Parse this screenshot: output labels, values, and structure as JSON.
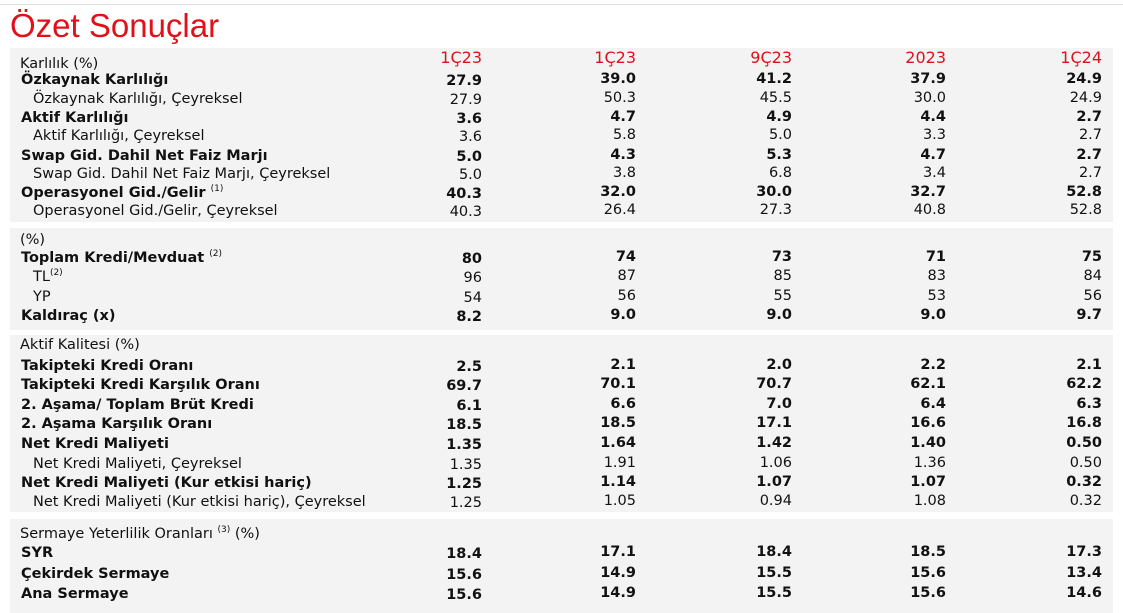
{
  "header": {
    "title": "Özet Sonuçlar",
    "columns": [
      "1Ç23",
      "1Ç23",
      "9Ç23",
      "2023",
      "1Ç24"
    ]
  },
  "sections": [
    {
      "title": "Karlılık (%)",
      "rows": [
        {
          "label": "Özkaynak Karlılığı",
          "bold": true,
          "values": [
            "27.9",
            "39.0",
            "41.2",
            "37.9",
            "24.9"
          ]
        },
        {
          "label": "Özkaynak Karlılığı, Çeyreksel",
          "bold": false,
          "values": [
            "27.9",
            "50.3",
            "45.5",
            "30.0",
            "24.9"
          ]
        },
        {
          "label": "Aktif Karlılığı",
          "bold": true,
          "values": [
            "3.6",
            "4.7",
            "4.9",
            "4.4",
            "2.7"
          ]
        },
        {
          "label": "Aktif Karlılığı, Çeyreksel",
          "bold": false,
          "values": [
            "3.6",
            "5.8",
            "5.0",
            "3.3",
            "2.7"
          ]
        },
        {
          "label": "Swap Gid. Dahil Net Faiz Marjı",
          "bold": true,
          "values": [
            "5.0",
            "4.3",
            "5.3",
            "4.7",
            "2.7"
          ]
        },
        {
          "label": "Swap Gid. Dahil Net Faiz Marjı, Çeyreksel",
          "bold": false,
          "values": [
            "5.0",
            "3.8",
            "6.8",
            "3.4",
            "2.7"
          ]
        },
        {
          "label": "Operasyonel Gid./Gelir",
          "note": "(1)",
          "bold": true,
          "values": [
            "40.3",
            "32.0",
            "30.0",
            "32.7",
            "52.8"
          ]
        },
        {
          "label": "Operasyonel Gid./Gelir, Çeyreksel",
          "bold": false,
          "values": [
            "40.3",
            "26.4",
            "27.3",
            "40.8",
            "52.8"
          ]
        }
      ]
    },
    {
      "title": "(%)",
      "rows": [
        {
          "label": "Toplam Kredi/Mevduat",
          "note": "(2)",
          "bold": true,
          "values": [
            "80",
            "74",
            "73",
            "71",
            "75"
          ]
        },
        {
          "label": "TL",
          "note": "(2)",
          "bold": false,
          "values": [
            "96",
            "87",
            "85",
            "83",
            "84"
          ]
        },
        {
          "label": "YP",
          "bold": false,
          "values": [
            "54",
            "56",
            "55",
            "53",
            "56"
          ]
        },
        {
          "label": "Kaldıraç (x)",
          "bold": true,
          "values": [
            "8.2",
            "9.0",
            "9.0",
            "9.0",
            "9.7"
          ]
        }
      ]
    },
    {
      "title": "Aktif Kalitesi (%)",
      "rows": [
        {
          "label": "Takipteki Kredi Oranı",
          "bold": true,
          "values": [
            "2.5",
            "2.1",
            "2.0",
            "2.2",
            "2.1"
          ]
        },
        {
          "label": "Takipteki Kredi Karşılık Oranı",
          "bold": true,
          "values": [
            "69.7",
            "70.1",
            "70.7",
            "62.1",
            "62.2"
          ]
        },
        {
          "label": "2. Aşama/ Toplam Brüt Kredi",
          "bold": true,
          "values": [
            "6.1",
            "6.6",
            "7.0",
            "6.4",
            "6.3"
          ]
        },
        {
          "label": "2. Aşama Karşılık Oranı",
          "bold": true,
          "values": [
            "18.5",
            "18.5",
            "17.1",
            "16.6",
            "16.8"
          ]
        },
        {
          "label": "Net Kredi Maliyeti",
          "bold": true,
          "values": [
            "1.35",
            "1.64",
            "1.42",
            "1.40",
            "0.50"
          ]
        },
        {
          "label": "Net Kredi Maliyeti, Çeyreksel",
          "bold": false,
          "values": [
            "1.35",
            "1.91",
            "1.06",
            "1.36",
            "0.50"
          ]
        },
        {
          "label": "Net Kredi Maliyeti (Kur etkisi hariç)",
          "bold": true,
          "values": [
            "1.25",
            "1.14",
            "1.07",
            "1.07",
            "0.32"
          ]
        },
        {
          "label": "Net Kredi Maliyeti (Kur etkisi hariç), Çeyreksel",
          "bold": false,
          "values": [
            "1.25",
            "1.05",
            "0.94",
            "1.08",
            "0.32"
          ]
        }
      ]
    },
    {
      "title": "Sermaye Yeterlilik Oranları",
      "note": "(3)",
      "title_suffix": "(%)",
      "rows": [
        {
          "label": "SYR",
          "bold": true,
          "values": [
            "18.4",
            "17.1",
            "18.4",
            "18.5",
            "17.3"
          ]
        },
        {
          "label": "Çekirdek Sermaye",
          "bold": true,
          "values": [
            "15.6",
            "14.9",
            "15.5",
            "15.6",
            "13.4"
          ]
        },
        {
          "label": "Ana Sermaye",
          "bold": true,
          "values": [
            "15.6",
            "14.9",
            "15.5",
            "15.6",
            "14.6"
          ]
        }
      ]
    }
  ]
}
